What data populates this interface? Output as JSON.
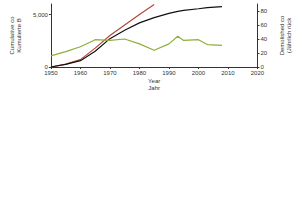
{
  "chart_data": {
    "type": "line",
    "x_label": [
      "Year",
      "Jahr"
    ],
    "y_label": [
      "Cumulative co",
      "Kumulierte B"
    ],
    "y2_label": [
      "Demolished co",
      "(Jährlich rück"
    ],
    "x": [
      1950,
      1955,
      1960,
      1965,
      1970,
      1975,
      1980,
      1985,
      1990,
      1993,
      1995,
      2000,
      2003,
      2008
    ],
    "series": [
      {
        "color": "#b5473a",
        "values": [
          0,
          280,
          700,
          1800,
          3000,
          4000,
          5000,
          5950,
          null,
          null,
          null,
          null,
          null,
          null
        ]
      },
      {
        "color": "#111111",
        "values": [
          0,
          250,
          600,
          1500,
          2700,
          3500,
          4200,
          4700,
          5100,
          5300,
          5400,
          5550,
          5650,
          5750
        ]
      },
      {
        "color": "#8fae3c",
        "axis": "y2",
        "values": [
          16,
          22,
          29,
          39,
          38,
          40,
          33,
          24,
          33,
          44,
          38,
          39,
          32,
          31
        ]
      }
    ],
    "xlim": [
      1950,
      2020
    ],
    "xticks": [
      1950,
      1960,
      1970,
      1980,
      1990,
      2000,
      2010,
      2020
    ],
    "ylim": [
      0,
      6000
    ],
    "yticks": [
      0,
      {
        "value": 5000,
        "label": "5,000"
      }
    ],
    "y2lim": [
      0,
      90
    ],
    "y2ticks": [
      0,
      20,
      40,
      60,
      80
    ],
    "grid": false
  }
}
